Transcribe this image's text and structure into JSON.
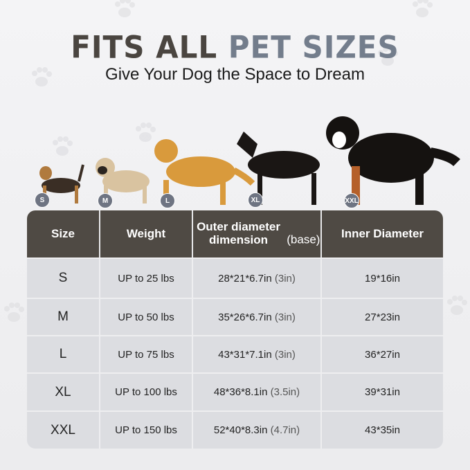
{
  "header": {
    "title_part1": "FITS ALL",
    "title_part2": "PET SIZES",
    "subtitle": "Give Your Dog the Space to Dream"
  },
  "colors": {
    "title_dark": "#4a4540",
    "title_accent": "#737d8c",
    "table_header": "#4f4a44",
    "table_cell": "#dcdde1",
    "badge": "#6e7482"
  },
  "dogs": [
    {
      "badge": "S",
      "breed_icon": "yorkshire-terrier"
    },
    {
      "badge": "M",
      "breed_icon": "pug"
    },
    {
      "badge": "L",
      "breed_icon": "golden-retriever"
    },
    {
      "badge": "XL",
      "breed_icon": "doberman"
    },
    {
      "badge": "XXL",
      "breed_icon": "bernese-mountain-dog"
    }
  ],
  "table": {
    "headers": {
      "size": "Size",
      "weight": "Weight",
      "outer_main": "Outer diameter dimension",
      "outer_note": "(base)",
      "inner": "Inner Diameter"
    },
    "rows": [
      {
        "size": "S",
        "weight": "UP to 25 lbs",
        "outer": "28*21*6.7in",
        "base": "(3in)",
        "inner": "19*16in"
      },
      {
        "size": "M",
        "weight": "UP to 50 lbs",
        "outer": "35*26*6.7in",
        "base": "(3in)",
        "inner": "27*23in"
      },
      {
        "size": "L",
        "weight": "UP to 75 lbs",
        "outer": "43*31*7.1in",
        "base": "(3in)",
        "inner": "36*27in"
      },
      {
        "size": "XL",
        "weight": "UP to 100 lbs",
        "outer": "48*36*8.1in",
        "base": "(3.5in)",
        "inner": "39*31in"
      },
      {
        "size": "XXL",
        "weight": "UP to 150 lbs",
        "outer": "52*40*8.3in",
        "base": "(4.7in)",
        "inner": "43*35in"
      }
    ]
  }
}
